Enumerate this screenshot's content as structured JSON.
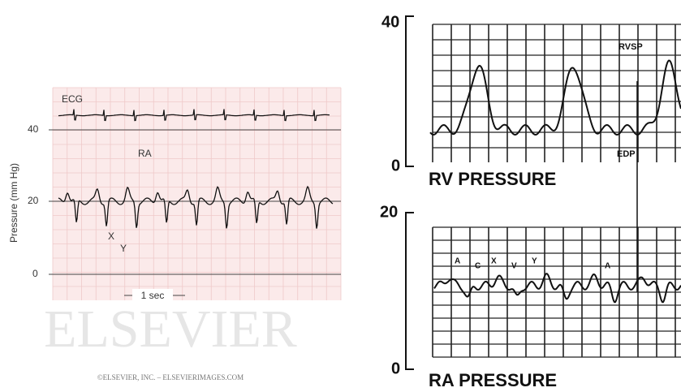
{
  "left_panel": {
    "ecg_label": "ECG",
    "yticks": [
      40,
      20,
      0
    ],
    "y_axis_label": "Pressure (mm Hg)",
    "wave_label": "RA",
    "x_label": "X",
    "y_label": "Y",
    "scale_label": "1 sec",
    "watermark": "ELSEVIER",
    "copyright": "©ELSEVIER, INC. – ELSEVIERIMAGES.COM"
  },
  "rv_panel": {
    "top_tick": 40,
    "bottom_tick": 0,
    "title": "RV PRESSURE",
    "peak_label": "RVSP",
    "edp_label": "EDP"
  },
  "ra_panel": {
    "top_tick": 20,
    "bottom_tick": 0,
    "title": "RA PRESSURE",
    "wave_marks": [
      "A",
      "C",
      "X",
      "V",
      "Y",
      "A"
    ]
  }
}
